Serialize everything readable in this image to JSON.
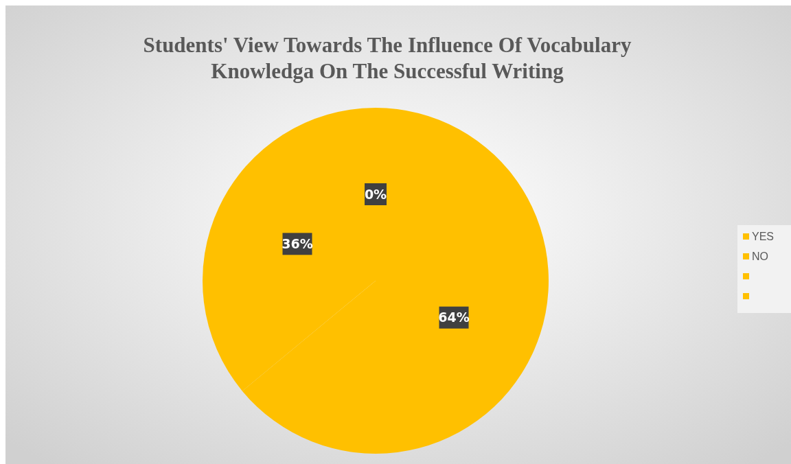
{
  "chart_data": {
    "type": "pie",
    "title": "Students' View Towards The Influence Of Vocabulary Knowledga On The Successful Writing",
    "categories": [
      "YES",
      "NO",
      null,
      null
    ],
    "values": [
      64,
      36,
      0,
      0
    ],
    "colors": [
      "#ffc000",
      "#ffc000",
      "#ffc000",
      "#ffc000"
    ],
    "value_labels": [
      "64%",
      "36%",
      "0%",
      null
    ],
    "legend": "right"
  }
}
